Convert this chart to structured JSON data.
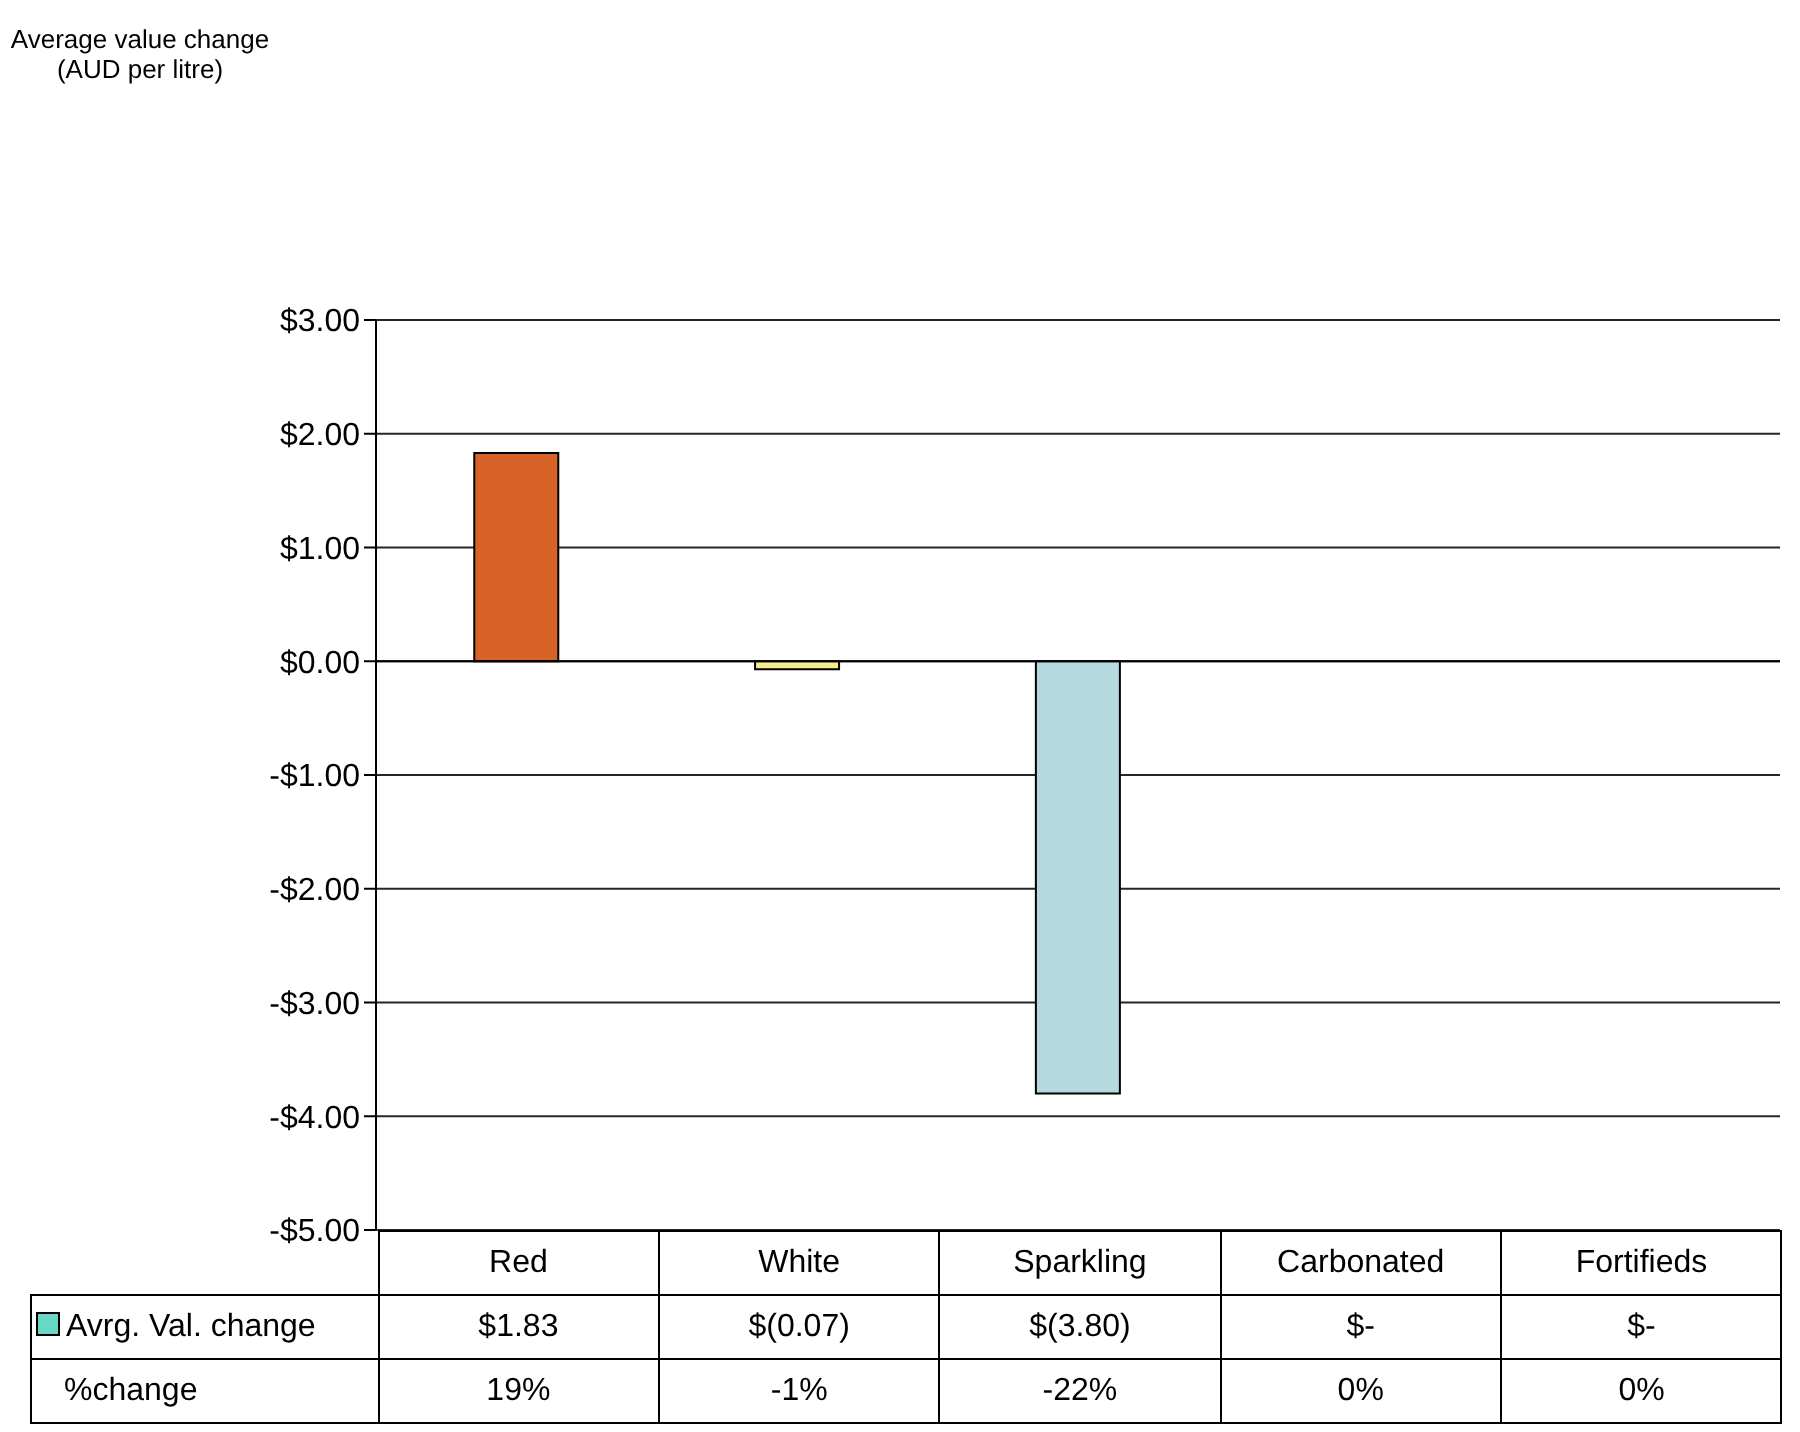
{
  "chart_data": {
    "type": "bar",
    "categories": [
      "Red",
      "White",
      "Sparkling",
      "Carbonated",
      "Fortifieds"
    ],
    "series": [
      {
        "name": "Avrg. Val. change",
        "color": "#66d9c4",
        "colors": [
          "#d86328",
          "#f5ee8f",
          "#b5d9de",
          "#9999ff",
          "#993366"
        ],
        "values": [
          1.83,
          -0.07,
          -3.8,
          0,
          0
        ],
        "value_labels": [
          "$1.83",
          "$(0.07)",
          "$(3.80)",
          "$-",
          "$-"
        ]
      }
    ],
    "ylim": [
      -5,
      3
    ],
    "yticks": [
      {
        "value": -5,
        "label": "-$5.00"
      },
      {
        "value": -4,
        "label": "-$4.00"
      },
      {
        "value": -3,
        "label": "-$3.00"
      },
      {
        "value": -2,
        "label": "-$2.00"
      },
      {
        "value": -1,
        "label": "-$1.00"
      },
      {
        "value": 0,
        "label": "$0.00"
      },
      {
        "value": 1,
        "label": "$1.00"
      },
      {
        "value": 2,
        "label": "$2.00"
      },
      {
        "value": 3,
        "label": "$3.00"
      }
    ],
    "grid": "y",
    "legend": "bottom",
    "annotations": [
      "Average value change (AUD per litre)",
      "%change",
      "19%",
      "-1%",
      "-22%",
      "0%",
      "0%"
    ]
  }
}
